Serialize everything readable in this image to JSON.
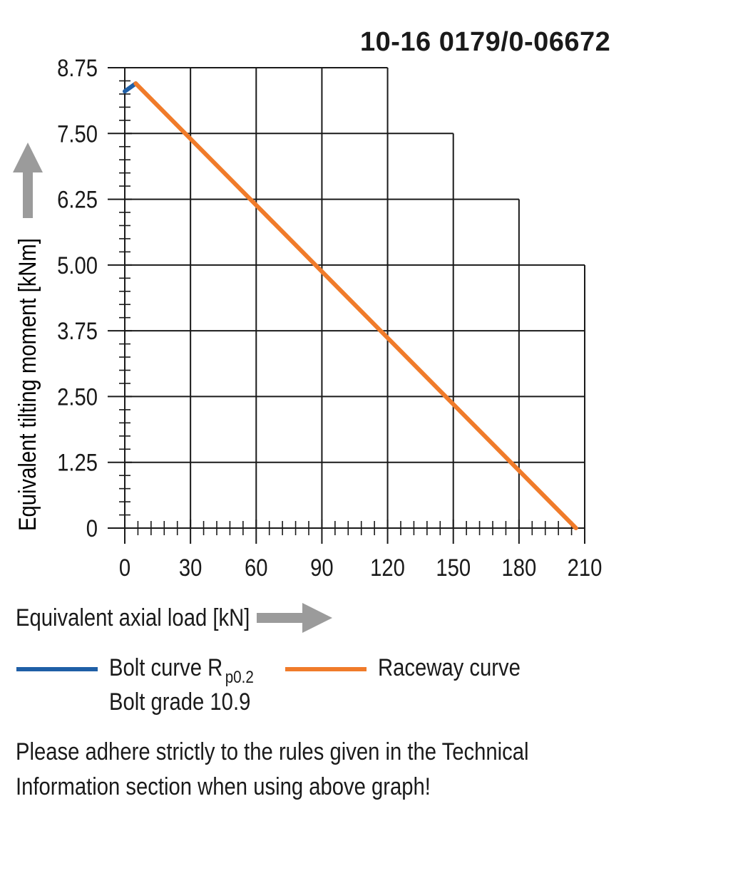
{
  "chart_data": {
    "type": "line",
    "title": "10-16 0179/0-06672",
    "xlabel": "Equivalent axial load [kN]",
    "ylabel": "Equivalent tilting moment [kNm]",
    "xlim": [
      0,
      210
    ],
    "ylim": [
      0,
      8.75
    ],
    "x_ticks": [
      "0",
      "30",
      "60",
      "90",
      "120",
      "150",
      "180",
      "210"
    ],
    "y_ticks": [
      "0",
      "1.25",
      "2.50",
      "3.75",
      "5.00",
      "6.25",
      "7.50",
      "8.75"
    ],
    "grid": true,
    "series": [
      {
        "name": "Bolt curve R p0.2",
        "color": "#1f5fa6",
        "x": [
          0,
          5
        ],
        "y": [
          8.3,
          8.45
        ]
      },
      {
        "name": "Raceway curve",
        "color": "#f07b2a",
        "x": [
          5,
          206
        ],
        "y": [
          8.45,
          0
        ]
      }
    ]
  },
  "legend": {
    "bolt_label": "Bolt curve  R",
    "bolt_sub": "p0.2",
    "bolt_grade": "Bolt grade 10.9",
    "raceway_label": "Raceway curve"
  },
  "note": {
    "line1": "Please adhere strictly to the rules given in the Technical",
    "line2": "Information section when using above graph!"
  },
  "icons": {
    "x_arrow": "arrow-right-icon",
    "y_arrow": "arrow-up-icon"
  },
  "colors": {
    "bolt": "#1f5fa6",
    "raceway": "#f07b2a",
    "arrow": "#9b9b9b",
    "grid": "#1a1a1a"
  }
}
